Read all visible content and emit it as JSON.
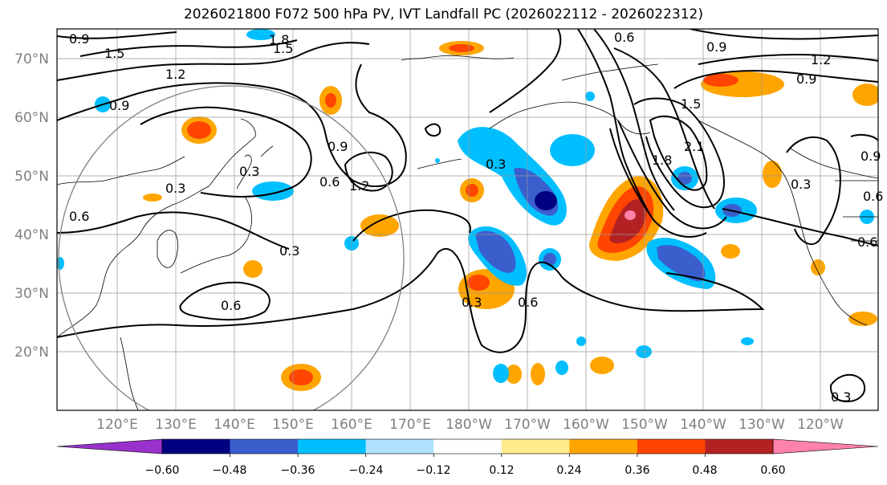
{
  "title": "2026021800 F072 500 hPa PV, IVT Landfall PC (2026022112 - 2026022312)",
  "chart_data": {
    "type": "filled contour map",
    "title": "2026021800 F072 500 hPa PV, IVT Landfall PC (2026022112 - 2026022312)",
    "projection": "equirectangular",
    "lon_range": [
      110,
      250
    ],
    "lat_range": [
      10,
      75
    ],
    "lat_ticks": [
      "20°N",
      "30°N",
      "40°N",
      "50°N",
      "60°N",
      "70°N"
    ],
    "lat_tick_values": [
      20,
      30,
      40,
      50,
      60,
      70
    ],
    "lon_ticks": [
      "120°E",
      "130°E",
      "140°E",
      "150°E",
      "160°E",
      "170°E",
      "180°W",
      "170°W",
      "160°W",
      "150°W",
      "140°W",
      "130°W",
      "120°W"
    ],
    "lon_tick_values": [
      120,
      130,
      140,
      150,
      160,
      170,
      180,
      190,
      200,
      210,
      220,
      230,
      240
    ],
    "colorbar": {
      "ticks": [
        "−0.60",
        "−0.48",
        "−0.36",
        "−0.24",
        "−0.12",
        "0.12",
        "0.24",
        "0.36",
        "0.48",
        "0.60"
      ],
      "bins": [
        {
          "color": "#9932cc"
        },
        {
          "color": "#000080"
        },
        {
          "color": "#3a5fcd"
        },
        {
          "color": "#00bfff"
        },
        {
          "color": "#b0e2ff"
        },
        {
          "color": "#ffffff"
        },
        {
          "color": "#ffec8b"
        },
        {
          "color": "#ffa500"
        },
        {
          "color": "#ff4500"
        },
        {
          "color": "#b22222"
        },
        {
          "color": "#ff82ab"
        }
      ]
    },
    "contour_labels": [
      "0.9",
      "1.5",
      "1.8",
      "1.5",
      "1.2",
      "0.9",
      "0.3",
      "0.3",
      "0.9",
      "0.6",
      "1.2",
      "0.3",
      "0.6",
      "0.6",
      "0.3",
      "0.6",
      "0.3",
      "0.6",
      "0.9",
      "1.2",
      "1.5",
      "1.8",
      "2.1",
      "0.9",
      "0.9",
      "0.3",
      "0.6",
      "0.6",
      "0.3"
    ],
    "annotations": [
      "circle centred near 142°E, 40°N"
    ]
  }
}
